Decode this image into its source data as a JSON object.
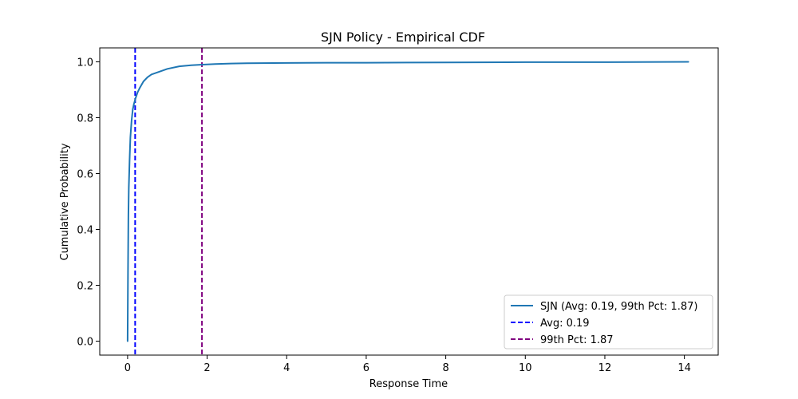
{
  "chart_data": {
    "type": "line",
    "title": "SJN Policy - Empirical CDF",
    "xlabel": "Response Time",
    "ylabel": "Cumulative Probability",
    "xlim": [
      -0.7,
      14.85
    ],
    "ylim": [
      -0.05,
      1.05
    ],
    "xticks": [
      0,
      2,
      4,
      6,
      8,
      10,
      12,
      14
    ],
    "yticks": [
      0.0,
      0.2,
      0.4,
      0.6,
      0.8,
      1.0
    ],
    "xtick_labels": [
      "0",
      "2",
      "4",
      "6",
      "8",
      "10",
      "12",
      "14"
    ],
    "ytick_labels": [
      "0.0",
      "0.2",
      "0.4",
      "0.6",
      "0.8",
      "1.0"
    ],
    "grid": false,
    "legend_position": "lower-right",
    "series": [
      {
        "name": "SJN (Avg: 0.19, 99th Pct: 1.87)",
        "color": "#1f77b4",
        "style": "solid",
        "x": [
          0.0,
          0.01,
          0.02,
          0.03,
          0.05,
          0.07,
          0.1,
          0.13,
          0.16,
          0.2,
          0.25,
          0.3,
          0.4,
          0.5,
          0.6,
          0.8,
          1.0,
          1.3,
          1.6,
          1.87,
          2.2,
          2.6,
          3.0,
          4.0,
          5.0,
          6.0,
          8.0,
          10.0,
          12.0,
          14.1
        ],
        "y": [
          0.0,
          0.25,
          0.45,
          0.55,
          0.65,
          0.73,
          0.79,
          0.83,
          0.85,
          0.87,
          0.89,
          0.905,
          0.93,
          0.945,
          0.955,
          0.965,
          0.975,
          0.984,
          0.988,
          0.99,
          0.992,
          0.994,
          0.995,
          0.996,
          0.997,
          0.997,
          0.998,
          0.999,
          0.999,
          1.0
        ]
      },
      {
        "name": "Avg: 0.19",
        "color": "#0000ff",
        "style": "dashed",
        "vline_x": 0.19
      },
      {
        "name": "99th Pct: 1.87",
        "color": "#800080",
        "style": "dashed",
        "vline_x": 1.87
      }
    ]
  }
}
